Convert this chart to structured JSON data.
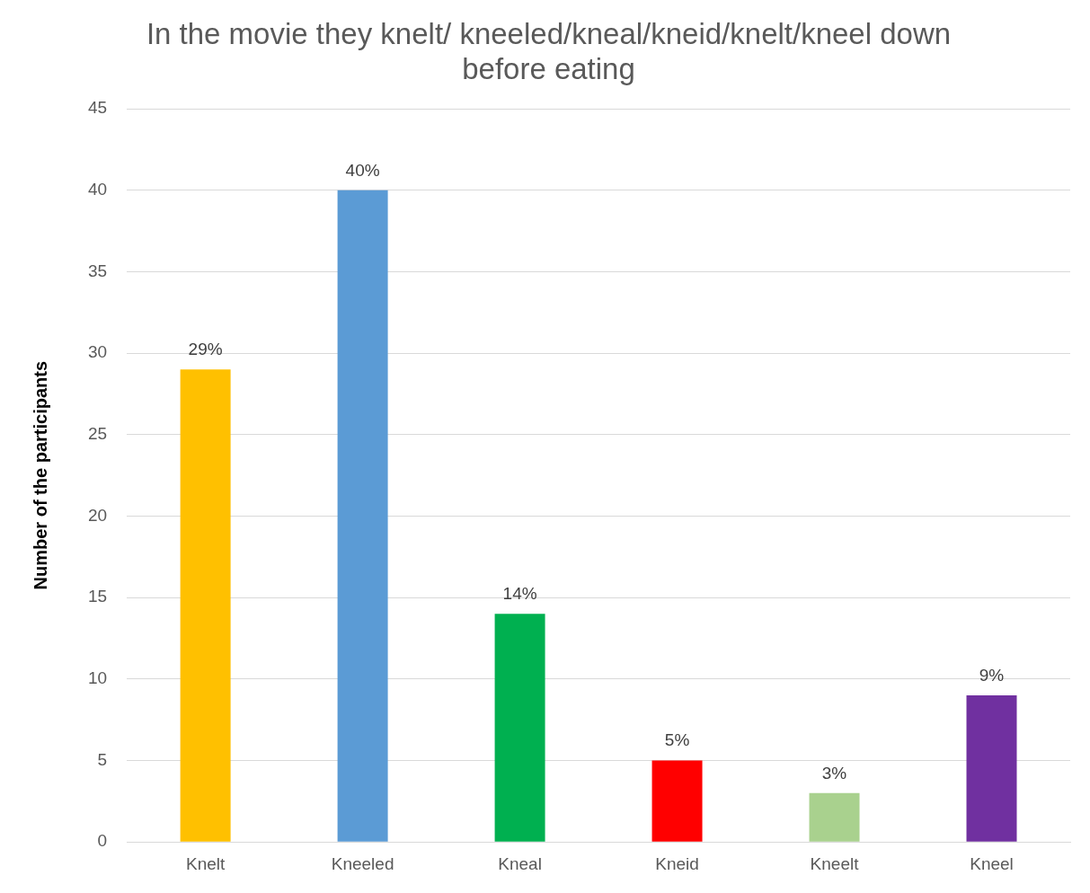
{
  "chart_data": {
    "type": "bar",
    "title": "In the movie they knelt/ kneeled/kneal/kneid/knelt/kneel down before eating",
    "ylabel": "Number of the participants",
    "categories": [
      "Knelt",
      "Kneeled",
      "Kneal",
      "Kneid",
      "Kneelt",
      "Kneel"
    ],
    "values": [
      29,
      40,
      14,
      5,
      3,
      9
    ],
    "colors": [
      "#ffc000",
      "#5b9bd5",
      "#00b050",
      "#ff0000",
      "#a9d18e",
      "#7030a0"
    ],
    "value_labels": [
      "29%",
      "40%",
      "14%",
      "5%",
      "3%",
      "9%"
    ],
    "ylim": [
      0,
      45
    ],
    "yticks": [
      0,
      5,
      10,
      15,
      20,
      25,
      30,
      35,
      40,
      45
    ],
    "grid": "y",
    "legend": false
  }
}
